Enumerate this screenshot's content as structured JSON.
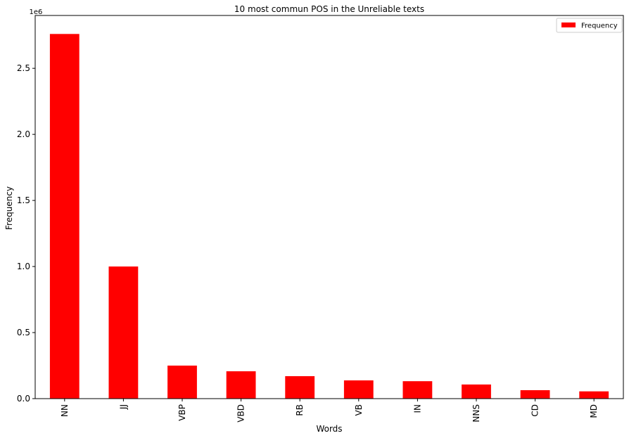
{
  "chart_data": {
    "type": "bar",
    "title": "10 most commun POS in the Unreliable texts",
    "xlabel": "Words",
    "ylabel": "Frequency",
    "y_offset_label": "1e6",
    "categories": [
      "NN",
      "JJ",
      "VBP",
      "VBD",
      "RB",
      "VB",
      "IN",
      "NNS",
      "CD",
      "MD"
    ],
    "series": [
      {
        "name": "Frequency",
        "values": [
          2760000,
          1000000,
          250000,
          207000,
          170000,
          138000,
          132000,
          107000,
          64000,
          55000
        ]
      }
    ],
    "ylim": [
      0,
      2900000
    ],
    "yticks": [
      0,
      500000,
      1000000,
      1500000,
      2000000,
      2500000
    ],
    "ytick_labels": [
      "0.0",
      "0.5",
      "1.0",
      "1.5",
      "2.0",
      "2.5"
    ],
    "bar_color": "#ff0000",
    "legend_position": "top-right",
    "grid": false
  }
}
